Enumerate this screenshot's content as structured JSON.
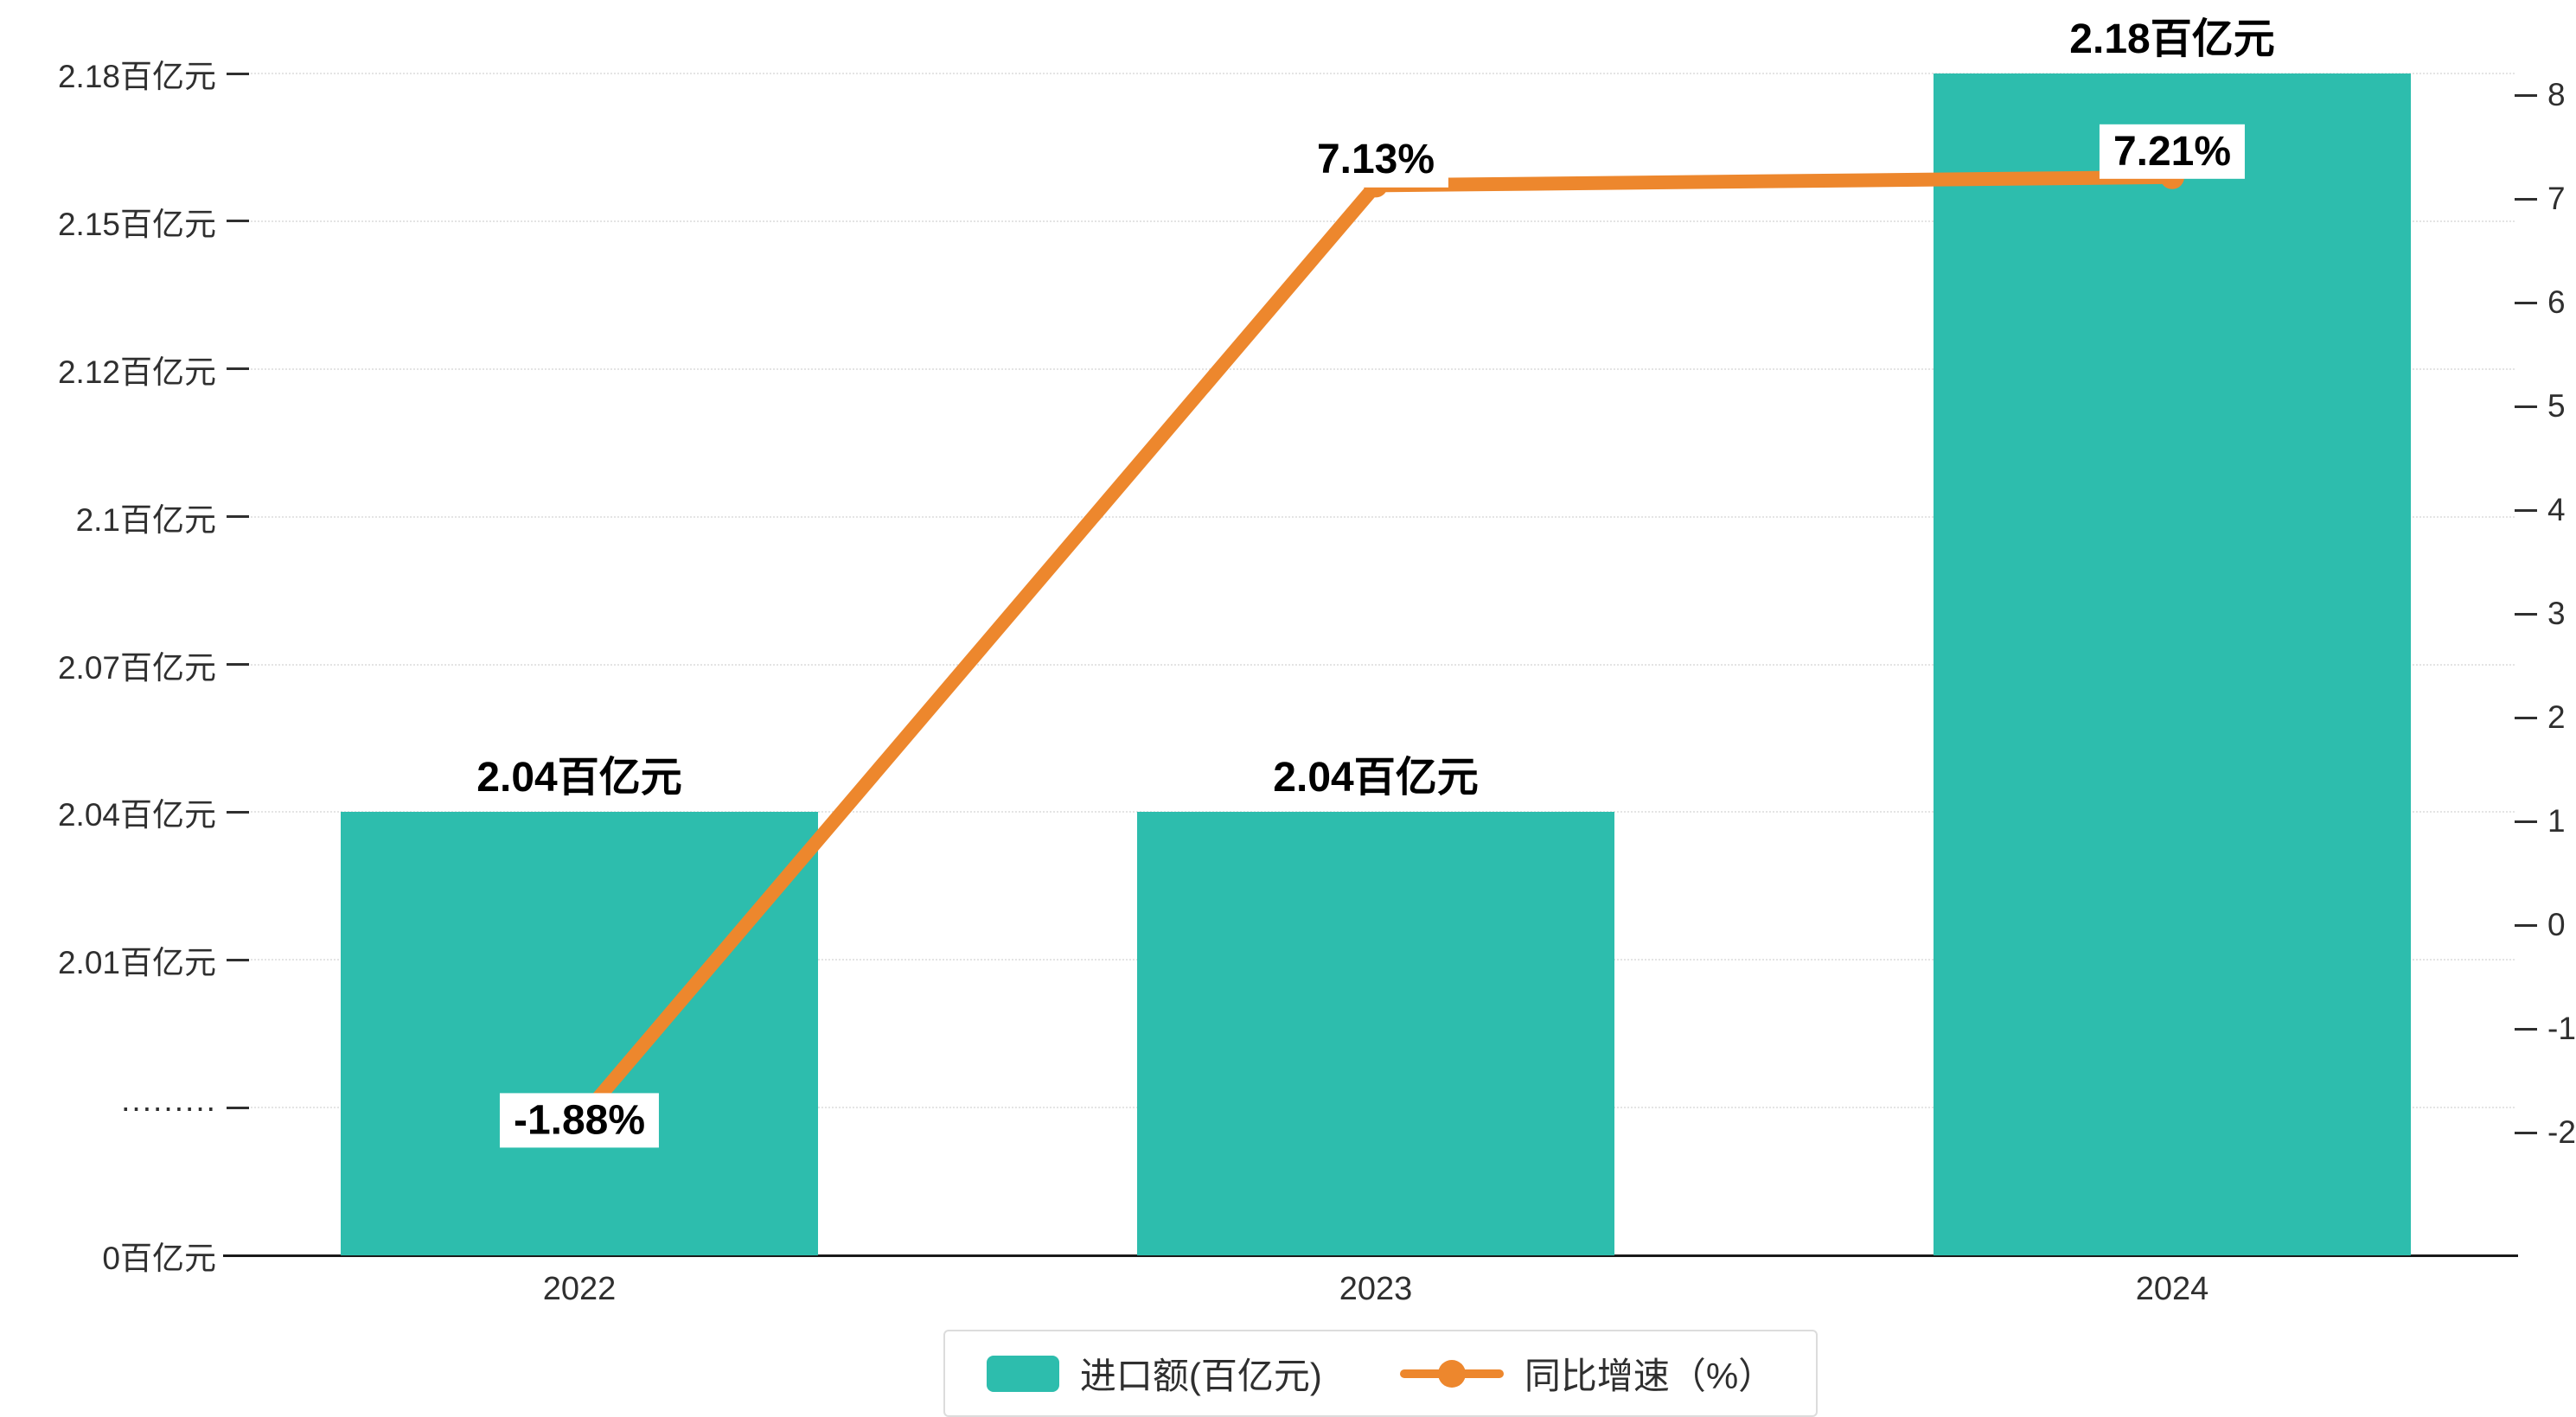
{
  "chart_data": {
    "type": "bar+line",
    "categories": [
      "2022",
      "2023",
      "2024"
    ],
    "series": [
      {
        "name": "进口额(百亿元)",
        "type": "bar",
        "values": [
          2.04,
          2.04,
          2.18
        ],
        "value_labels": [
          "2.04百亿元",
          "2.04百亿元",
          "2.18百亿元"
        ],
        "color": "#2dbdad"
      },
      {
        "name": "同比增速（%）",
        "type": "line",
        "values": [
          -1.88,
          7.13,
          7.21
        ],
        "value_labels": [
          "-1.88%",
          "7.13%",
          "7.21%"
        ],
        "color": "#ed872d"
      }
    ],
    "left_axis": {
      "unit": "百亿元",
      "tick_labels": [
        "2.18百亿元",
        "2.15百亿元",
        "2.12百亿元",
        "2.1百亿元",
        "2.07百亿元",
        "2.04百亿元",
        "2.01百亿元",
        "·········",
        "0百亿元"
      ],
      "tick_values": [
        2.18,
        2.15,
        2.12,
        2.1,
        2.07,
        2.04,
        2.01,
        null,
        0
      ],
      "axis_break": true
    },
    "right_axis": {
      "min": -2,
      "max": 8,
      "step": 1,
      "tick_labels": [
        "8",
        "7",
        "6",
        "5",
        "4",
        "3",
        "2",
        "1",
        "0",
        "-1",
        "-2"
      ]
    },
    "legend": {
      "position": "bottom",
      "items": [
        {
          "label": "进口额(百亿元)",
          "marker": "bar"
        },
        {
          "label": "同比增速（%）",
          "marker": "line"
        }
      ]
    },
    "grid": "dotted horizontal",
    "colors": {
      "bar": "#2dbdad",
      "line": "#ed872d",
      "text": "#2f2f2f",
      "grid": "#e4e4e4",
      "axis": "#1a1a1a",
      "label_bg": "#ffffff"
    }
  }
}
